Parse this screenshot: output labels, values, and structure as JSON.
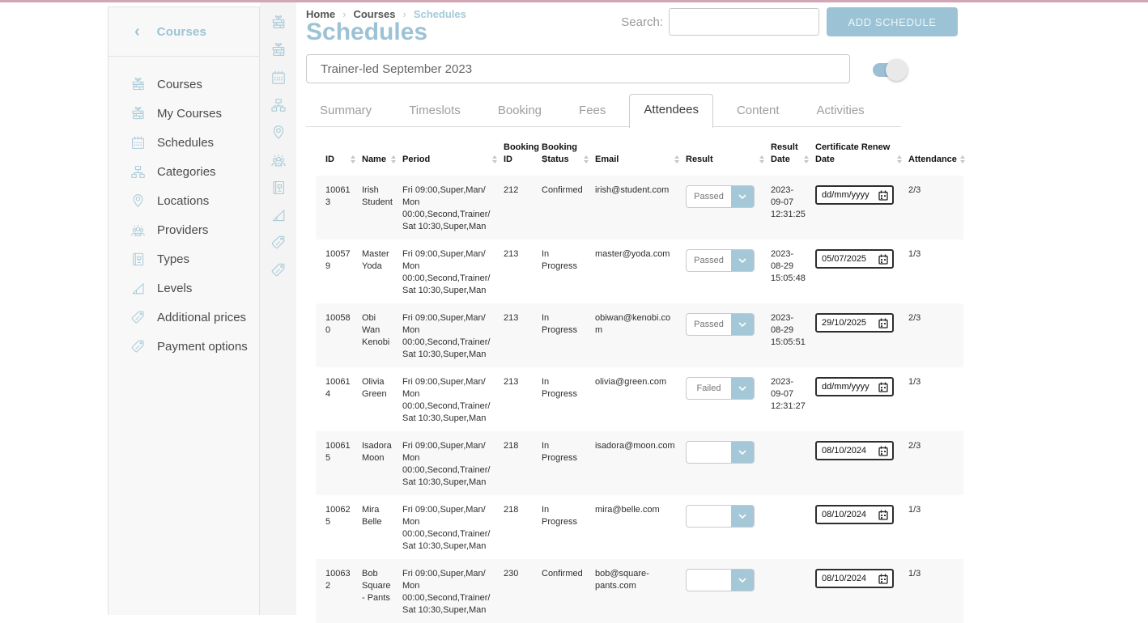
{
  "colors": {
    "accent": "#9cc3d5",
    "icon_blue": "#a9cbd9",
    "top_bar_pink": "#d3a6b6",
    "row_stripe": "#f8f8f8"
  },
  "breadcrumb": {
    "separator": "›",
    "items": [
      {
        "label": "Home",
        "current": false
      },
      {
        "label": "Courses",
        "current": false
      },
      {
        "label": "Schedules",
        "current": true
      }
    ]
  },
  "topbar": {
    "search_label": "Search:",
    "search_value": "",
    "add_button_label": "ADD SCHEDULE"
  },
  "page_title": "Schedules",
  "schedule": {
    "name_value": "Trainer-led September 2023",
    "toggle_on": true
  },
  "sidebar": {
    "back_icon": "‹",
    "header_label": "Courses",
    "items": [
      {
        "label": "Courses",
        "icon": "courses-icon"
      },
      {
        "label": "My Courses",
        "icon": "my-courses-icon"
      },
      {
        "label": "Schedules",
        "icon": "schedules-icon"
      },
      {
        "label": "Categories",
        "icon": "categories-icon"
      },
      {
        "label": "Locations",
        "icon": "locations-icon"
      },
      {
        "label": "Providers",
        "icon": "providers-icon"
      },
      {
        "label": "Types",
        "icon": "types-icon"
      },
      {
        "label": "Levels",
        "icon": "levels-icon"
      },
      {
        "label": "Additional prices",
        "icon": "price-tag-icon"
      },
      {
        "label": "Payment options",
        "icon": "price-tag-icon"
      }
    ]
  },
  "tabs": [
    {
      "label": "Summary",
      "active": false
    },
    {
      "label": "Timeslots",
      "active": false
    },
    {
      "label": "Booking",
      "active": false
    },
    {
      "label": "Fees",
      "active": false
    },
    {
      "label": "Attendees",
      "active": true
    },
    {
      "label": "Content",
      "active": false
    },
    {
      "label": "Activities",
      "active": false
    }
  ],
  "table": {
    "columns": [
      {
        "label": "ID",
        "sortable": true
      },
      {
        "label": "Name",
        "sortable": true
      },
      {
        "label": "Period",
        "sortable": true
      },
      {
        "label": "Booking ID",
        "sortable": true
      },
      {
        "label": "Booking Status",
        "sortable": true
      },
      {
        "label": "Email",
        "sortable": true
      },
      {
        "label": "Result",
        "sortable": true
      },
      {
        "label": "Result Date",
        "sortable": true
      },
      {
        "label": "Certificate Renew Date",
        "sortable": true
      },
      {
        "label": "Attendance",
        "sortable": true
      }
    ],
    "rows": [
      {
        "id": "100613",
        "name": "Irish Student",
        "period": "Fri 09:00,Super,Man/ Mon 00:00,Second,Trainer/ Sat 10:30,Super,Man",
        "booking_id": "212",
        "booking_status": "Confirmed",
        "email": "irish@student.com",
        "result": "Passed",
        "result_date": "2023-09-07 12:31:25",
        "cert_renew_date": "dd/mm/yyyy",
        "attendance": "2/3"
      },
      {
        "id": "100579",
        "name": "Master Yoda",
        "period": "Fri 09:00,Super,Man/ Mon 00:00,Second,Trainer/ Sat 10:30,Super,Man",
        "booking_id": "213",
        "booking_status": "In Progress",
        "email": "master@yoda.com",
        "result": "Passed",
        "result_date": "2023-08-29 15:05:48",
        "cert_renew_date": "05/07/2025",
        "attendance": "1/3"
      },
      {
        "id": "100580",
        "name": "Obi Wan Kenobi",
        "period": "Fri 09:00,Super,Man/ Mon 00:00,Second,Trainer/ Sat 10:30,Super,Man",
        "booking_id": "213",
        "booking_status": "In Progress",
        "email": "obiwan@kenobi.com",
        "result": "Passed",
        "result_date": "2023-08-29 15:05:51",
        "cert_renew_date": "29/10/2025",
        "attendance": "2/3"
      },
      {
        "id": "100614",
        "name": "Olivia Green",
        "period": "Fri 09:00,Super,Man/ Mon 00:00,Second,Trainer/ Sat 10:30,Super,Man",
        "booking_id": "213",
        "booking_status": "In Progress",
        "email": "olivia@green.com",
        "result": "Failed",
        "result_date": "2023-09-07 12:31:27",
        "cert_renew_date": "dd/mm/yyyy",
        "attendance": "1/3"
      },
      {
        "id": "100615",
        "name": "Isadora Moon",
        "period": "Fri 09:00,Super,Man/ Mon 00:00,Second,Trainer/ Sat 10:30,Super,Man",
        "booking_id": "218",
        "booking_status": "In Progress",
        "email": "isadora@moon.com",
        "result": "",
        "result_date": "",
        "cert_renew_date": "08/10/2024",
        "attendance": "2/3"
      },
      {
        "id": "100625",
        "name": "Mira Belle",
        "period": "Fri 09:00,Super,Man/ Mon 00:00,Second,Trainer/ Sat 10:30,Super,Man",
        "booking_id": "218",
        "booking_status": "In Progress",
        "email": "mira@belle.com",
        "result": "",
        "result_date": "",
        "cert_renew_date": "08/10/2024",
        "attendance": "1/3"
      },
      {
        "id": "100632",
        "name": "Bob Square - Pants",
        "period": "Fri 09:00,Super,Man/ Mon 00:00,Second,Trainer/ Sat 10:30,Super,Man",
        "booking_id": "230",
        "booking_status": "Confirmed",
        "email": "bob@square-pants.com",
        "result": "",
        "result_date": "",
        "cert_renew_date": "08/10/2024",
        "attendance": "1/3"
      }
    ]
  }
}
